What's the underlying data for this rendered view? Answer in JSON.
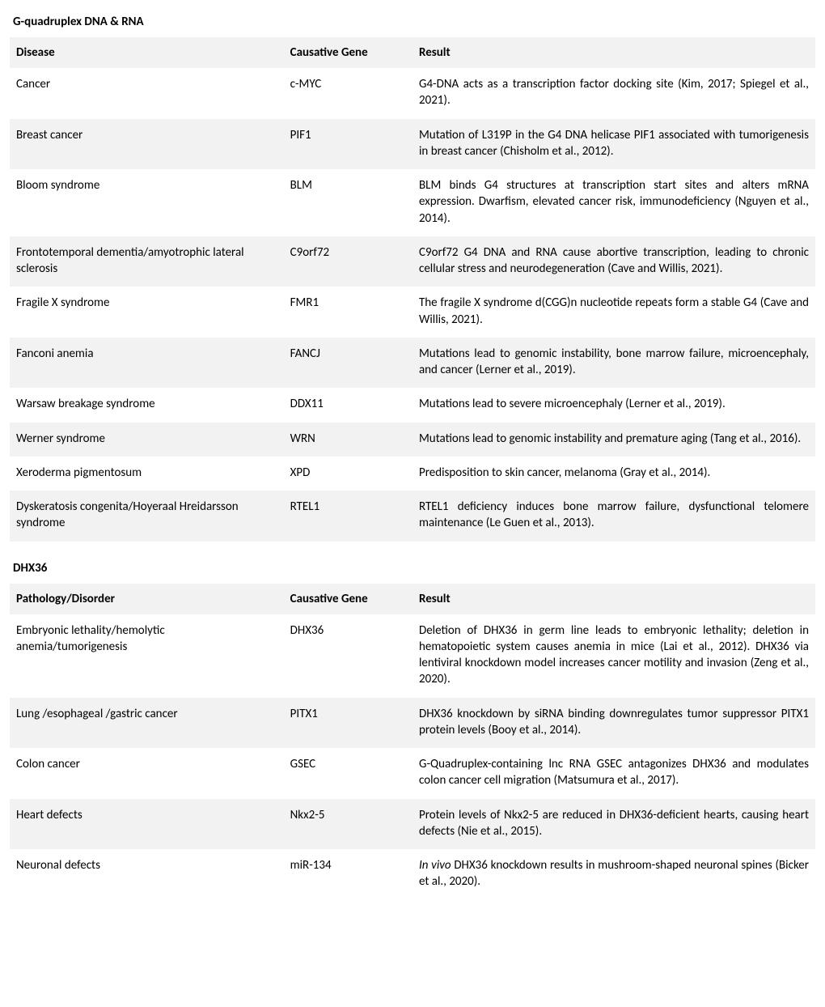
{
  "sections": [
    {
      "title": "G-quadruplex DNA & RNA",
      "columns": [
        "Disease",
        "Causative Gene",
        "Result"
      ],
      "rows": [
        {
          "disease": "Cancer",
          "gene": "c-MYC",
          "result": "G4-DNA acts as a transcription factor docking site (Kim, 2017; Spiegel et al., 2021)."
        },
        {
          "disease": "Breast cancer",
          "gene": "PIF1",
          "result": "Mutation of L319P in the G4 DNA helicase PIF1 associated with tumorigenesis in breast cancer (Chisholm et al., 2012)."
        },
        {
          "disease": "Bloom syndrome",
          "gene": "BLM",
          "result": "BLM binds G4 structures at transcription start sites and alters mRNA expression. Dwarfism, elevated cancer risk, immunodeficiency (Nguyen et al., 2014)."
        },
        {
          "disease": "Frontotemporal dementia/amyotrophic lateral sclerosis",
          "gene": "C9orf72",
          "result": "C9orf72 G4 DNA and RNA cause abortive transcription, leading to chronic cellular stress and neurodegeneration (Cave and Willis, 2021)."
        },
        {
          "disease": "Fragile X syndrome",
          "gene": "FMR1",
          "result": "The fragile X syndrome d(CGG)n nucleotide repeats form a stable G4 (Cave and Willis, 2021)."
        },
        {
          "disease": "Fanconi anemia",
          "gene": "FANCJ",
          "result": "Mutations lead to genomic instability, bone marrow failure, microencephaly, and cancer (Lerner et al., 2019)."
        },
        {
          "disease": "Warsaw breakage syndrome",
          "gene": "DDX11",
          "result": "Mutations lead to severe microencephaly (Lerner et al., 2019)."
        },
        {
          "disease": "Werner syndrome",
          "gene": "WRN",
          "result": "Mutations lead to genomic instability and premature aging (Tang et al., 2016)."
        },
        {
          "disease": "Xeroderma pigmentosum",
          "gene": "XPD",
          "result": "Predisposition to skin cancer, melanoma (Gray et al., 2014)."
        },
        {
          "disease": "Dyskeratosis congenita/Hoyeraal Hreidarsson syndrome",
          "gene": "RTEL1",
          "result": "RTEL1 deficiency induces bone marrow failure, dysfunctional telomere maintenance (Le Guen et al., 2013)."
        }
      ]
    },
    {
      "title": "DHX36",
      "columns": [
        "Pathology/Disorder",
        "Causative Gene",
        "Result"
      ],
      "rows": [
        {
          "disease": "Embryonic lethality/hemolytic anemia/tumorigenesis",
          "gene": "DHX36",
          "result": "Deletion of DHX36 in germ line leads to embryonic lethality; deletion in hematopoietic system causes anemia in mice (Lai et al., 2012). DHX36 via lentiviral knockdown model increases cancer motility and invasion (Zeng et al., 2020)."
        },
        {
          "disease": "Lung /esophageal /gastric cancer",
          "gene": "PITX1",
          "result": "DHX36 knockdown by siRNA binding downregulates tumor suppressor PITX1 protein levels  (Booy et al., 2014)."
        },
        {
          "disease": "Colon cancer",
          "gene": "GSEC",
          "result": "G-Quadruplex-containing lnc RNA GSEC antagonizes DHX36 and modulates colon cancer cell migration (Matsumura et al., 2017)."
        },
        {
          "disease": "Heart defects",
          "gene": "Nkx2-5",
          "result": "Protein levels of Nkx2-5 are reduced in DHX36-deficient hearts, causing heart defects (Nie et al., 2015)."
        },
        {
          "disease": "Neuronal defects",
          "gene": "miR-134",
          "result_html": "<span class=\"italic\">In vivo</span> DHX36 knockdown results in mushroom-shaped neuronal spines (Bicker et al., 2020)."
        }
      ]
    }
  ],
  "style": {
    "header_bg": "#f2f2f2",
    "row_even_bg": "#f2f2f2",
    "row_odd_bg": "#ffffff",
    "font_family": "Calibri",
    "font_size_pt": 11,
    "col_widths_pct": [
      34,
      16,
      50
    ]
  }
}
